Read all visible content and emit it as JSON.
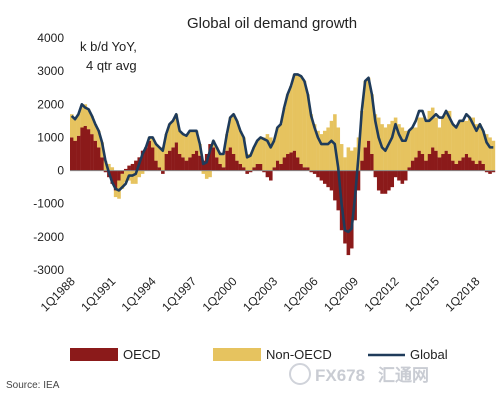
{
  "chart_data": {
    "type": "bar",
    "title": "Global oil demand growth",
    "ylabel": "k b/d YoY,",
    "ylabel_line2": "4 qtr avg",
    "ylim": [
      -3000,
      4000
    ],
    "y_ticks": [
      4000,
      3000,
      2000,
      1000,
      0,
      -1000,
      -2000,
      -3000
    ],
    "y_tick_labels": [
      "4000",
      "3000",
      "2000",
      "1000",
      "0",
      "-1000",
      "-2000",
      "-3000"
    ],
    "x_ticks": [
      {
        "index": 0,
        "label": "1Q1988"
      },
      {
        "index": 12,
        "label": "1Q1991"
      },
      {
        "index": 24,
        "label": "1Q1994"
      },
      {
        "index": 36,
        "label": "1Q1997"
      },
      {
        "index": 48,
        "label": "1Q2000"
      },
      {
        "index": 60,
        "label": "1Q2003"
      },
      {
        "index": 72,
        "label": "1Q2006"
      },
      {
        "index": 84,
        "label": "1Q2009"
      },
      {
        "index": 96,
        "label": "1Q2012"
      },
      {
        "index": 108,
        "label": "1Q2015"
      },
      {
        "index": 120,
        "label": "1Q2018"
      }
    ],
    "x_start": "1Q1988",
    "x_frequency": "quarterly",
    "series": [
      {
        "name": "OECD",
        "type": "bar",
        "color": "#8b1a1a",
        "values": [
          1000,
          900,
          1050,
          1300,
          1350,
          1250,
          1100,
          900,
          700,
          400,
          -50,
          -200,
          -400,
          -600,
          -300,
          -100,
          50,
          150,
          200,
          300,
          400,
          600,
          700,
          900,
          700,
          300,
          100,
          -100,
          500,
          600,
          700,
          850,
          500,
          400,
          300,
          400,
          500,
          600,
          450,
          300,
          500,
          800,
          700,
          400,
          200,
          100,
          600,
          700,
          500,
          300,
          200,
          100,
          -100,
          -50,
          100,
          200,
          200,
          -50,
          -200,
          -300,
          100,
          300,
          200,
          400,
          500,
          550,
          600,
          400,
          200,
          100,
          100,
          -50,
          -100,
          -200,
          -300,
          -400,
          -500,
          -600,
          -900,
          -1200,
          -1800,
          -2200,
          -2550,
          -2350,
          -1500,
          -600,
          300,
          700,
          900,
          500,
          -200,
          -600,
          -700,
          -700,
          -600,
          -500,
          -200,
          -300,
          -400,
          -300,
          100,
          300,
          400,
          600,
          500,
          300,
          500,
          700,
          600,
          400,
          500,
          600,
          500,
          300,
          200,
          300,
          400,
          500,
          400,
          300,
          200,
          300,
          200,
          -50,
          -100,
          -50
        ]
      },
      {
        "name": "Non-OECD",
        "type": "bar",
        "color": "#e6c35f",
        "values": [
          700,
          700,
          650,
          650,
          650,
          600,
          550,
          500,
          500,
          450,
          300,
          200,
          100,
          -200,
          -550,
          -450,
          -350,
          -300,
          -400,
          -400,
          -200,
          -100,
          0,
          100,
          300,
          500,
          600,
          700,
          600,
          800,
          800,
          850,
          700,
          700,
          750,
          800,
          700,
          600,
          350,
          -100,
          -250,
          -200,
          200,
          300,
          300,
          400,
          500,
          900,
          1200,
          1200,
          1000,
          900,
          500,
          500,
          600,
          700,
          800,
          1000,
          1100,
          1000,
          800,
          1000,
          1200,
          1500,
          1800,
          2000,
          2300,
          2500,
          2650,
          2600,
          2200,
          1700,
          1400,
          1200,
          1100,
          1200,
          1300,
          1500,
          1700,
          1300,
          800,
          400,
          700,
          600,
          700,
          1000,
          1500,
          2000,
          1900,
          1800,
          1700,
          1600,
          1400,
          1300,
          1400,
          1500,
          1600,
          1400,
          1300,
          1200,
          1100,
          1000,
          900,
          1000,
          1100,
          1200,
          1300,
          1200,
          1000,
          900,
          1100,
          1200,
          1300,
          1100,
          1100,
          1200,
          1100,
          1000,
          1200,
          1300,
          1200,
          1100,
          1000,
          1100,
          1000,
          900,
          800,
          750
        ]
      },
      {
        "name": "Global",
        "type": "line",
        "color": "#1f3b5a",
        "values": [
          1650,
          1550,
          1700,
          2000,
          1900,
          1850,
          1650,
          1400,
          1200,
          850,
          300,
          -50,
          -350,
          -550,
          -600,
          -500,
          -400,
          -150,
          -150,
          -100,
          200,
          500,
          700,
          1000,
          1000,
          800,
          700,
          600,
          1100,
          1400,
          1500,
          1700,
          1200,
          1100,
          1050,
          1200,
          1200,
          1200,
          800,
          200,
          250,
          600,
          900,
          700,
          500,
          500,
          1100,
          1600,
          1700,
          1500,
          1200,
          1000,
          400,
          450,
          700,
          900,
          1000,
          950,
          900,
          700,
          900,
          1300,
          1400,
          1900,
          2300,
          2550,
          2900,
          2900,
          2850,
          2700,
          2300,
          1650,
          1300,
          1000,
          800,
          800,
          800,
          900,
          800,
          100,
          -1000,
          -1800,
          -1850,
          -1750,
          -800,
          400,
          1800,
          2700,
          2800,
          2300,
          1500,
          1000,
          700,
          600,
          800,
          1000,
          1400,
          1100,
          900,
          900,
          1200,
          1300,
          1500,
          1800,
          1800,
          1500,
          1500,
          1600,
          1700,
          1600,
          1600,
          1800,
          1600,
          1400,
          1300,
          1500,
          1500,
          1700,
          1600,
          1400,
          1200,
          1400,
          1200,
          850,
          700,
          700
        ]
      }
    ],
    "legend_position": "bottom",
    "grid": false
  },
  "legend": {
    "items": [
      {
        "label": "OECD",
        "kind": "bar",
        "color": "#8b1a1a"
      },
      {
        "label": "Non-OECD",
        "kind": "bar",
        "color": "#e6c35f"
      },
      {
        "label": "Global",
        "kind": "line",
        "color": "#1f3b5a"
      }
    ]
  },
  "source": "Source: IEA",
  "watermark": {
    "text1": "FX678",
    "text2": "汇通网"
  }
}
